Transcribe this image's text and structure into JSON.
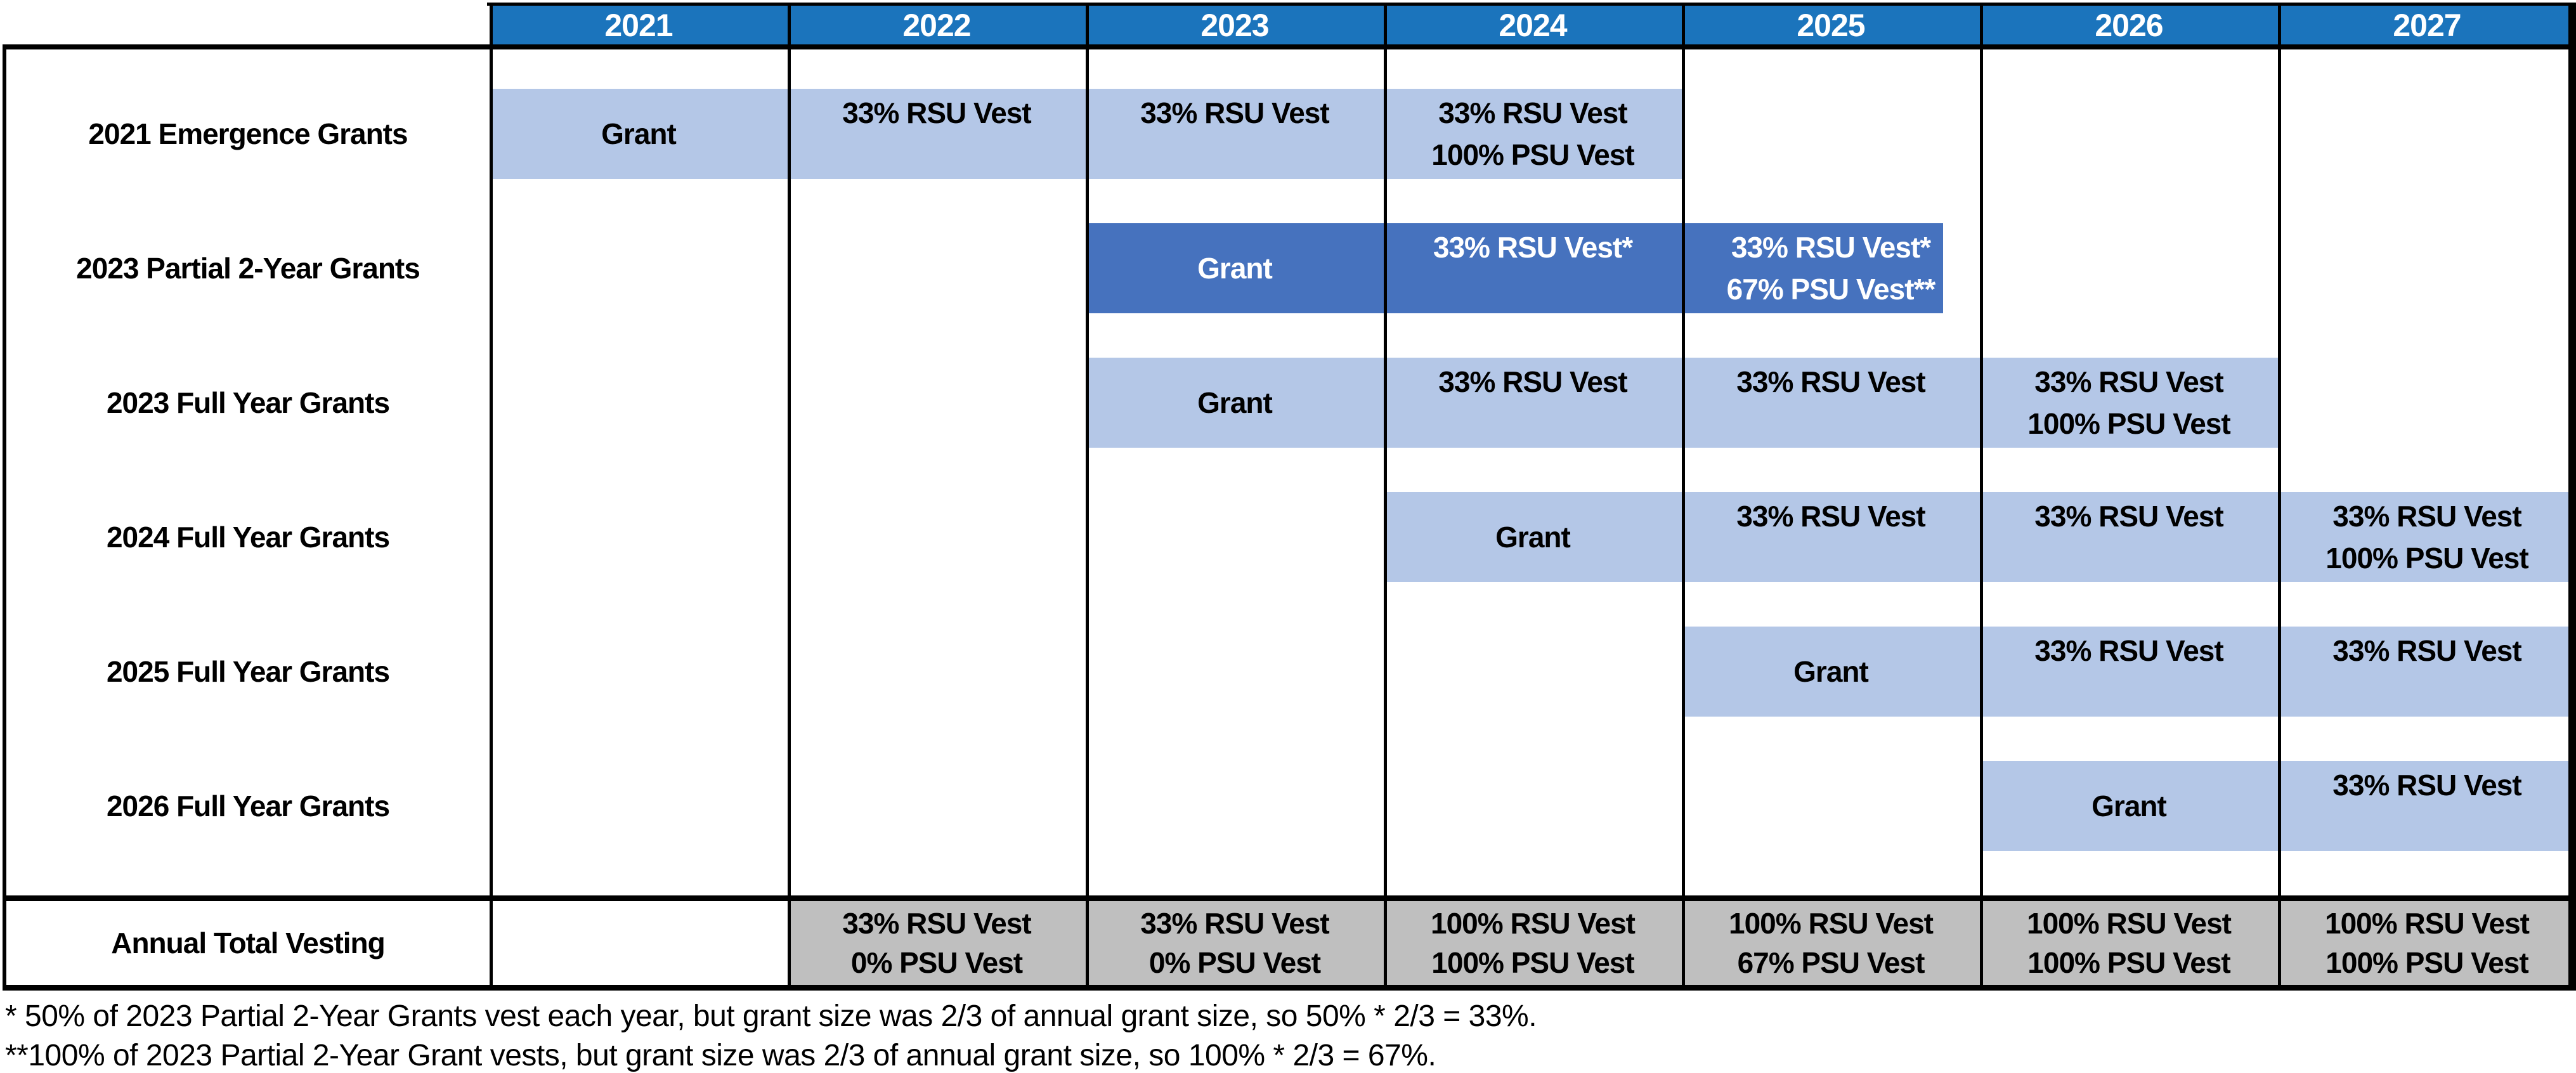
{
  "palette": {
    "header_blue": "#1B74BC",
    "light_blue": "#B4C7E7",
    "dark_blue": "#4672BE",
    "total_gray": "#BFBFBF",
    "border_black": "#000000",
    "text_black": "#000000",
    "text_white": "#FFFFFF"
  },
  "columns": [
    "2021",
    "2022",
    "2023",
    "2024",
    "2025",
    "2026",
    "2027"
  ],
  "rows": [
    {
      "label": "2021 Emergence Grants",
      "bar": {
        "start": 0,
        "end": 3,
        "style": "light",
        "end_partial": false
      },
      "cells": [
        {
          "col": 0,
          "lines": [
            "Grant"
          ],
          "center": true
        },
        {
          "col": 1,
          "lines": [
            "33% RSU Vest"
          ]
        },
        {
          "col": 2,
          "lines": [
            "33% RSU Vest"
          ]
        },
        {
          "col": 3,
          "lines": [
            "33% RSU Vest",
            "100% PSU Vest"
          ]
        }
      ]
    },
    {
      "label": "2023 Partial 2-Year Grants",
      "bar": {
        "start": 2,
        "end": 4,
        "style": "dark",
        "end_partial": true
      },
      "cells": [
        {
          "col": 2,
          "lines": [
            "Grant"
          ],
          "center": true
        },
        {
          "col": 3,
          "lines": [
            "33% RSU Vest*"
          ]
        },
        {
          "col": 4,
          "lines": [
            "33% RSU Vest*",
            "67% PSU Vest**"
          ]
        }
      ]
    },
    {
      "label": "2023 Full Year Grants",
      "bar": {
        "start": 2,
        "end": 5,
        "style": "light",
        "end_partial": false
      },
      "cells": [
        {
          "col": 2,
          "lines": [
            "Grant"
          ],
          "center": true
        },
        {
          "col": 3,
          "lines": [
            "33% RSU Vest"
          ]
        },
        {
          "col": 4,
          "lines": [
            "33% RSU Vest"
          ]
        },
        {
          "col": 5,
          "lines": [
            "33% RSU Vest",
            "100% PSU Vest"
          ]
        }
      ]
    },
    {
      "label": "2024 Full Year Grants",
      "bar": {
        "start": 3,
        "end": 6,
        "style": "light",
        "end_partial": false
      },
      "cells": [
        {
          "col": 3,
          "lines": [
            "Grant"
          ],
          "center": true
        },
        {
          "col": 4,
          "lines": [
            "33% RSU Vest"
          ]
        },
        {
          "col": 5,
          "lines": [
            "33% RSU Vest"
          ]
        },
        {
          "col": 6,
          "lines": [
            "33% RSU Vest",
            "100% PSU Vest"
          ]
        }
      ]
    },
    {
      "label": "2025 Full Year Grants",
      "bar": {
        "start": 4,
        "end": 6,
        "style": "light",
        "end_partial": false
      },
      "cells": [
        {
          "col": 4,
          "lines": [
            "Grant"
          ],
          "center": true
        },
        {
          "col": 5,
          "lines": [
            "33% RSU Vest"
          ]
        },
        {
          "col": 6,
          "lines": [
            "33% RSU Vest"
          ]
        }
      ]
    },
    {
      "label": "2026 Full Year Grants",
      "bar": {
        "start": 5,
        "end": 6,
        "style": "light",
        "end_partial": false
      },
      "cells": [
        {
          "col": 5,
          "lines": [
            "Grant"
          ],
          "center": true
        },
        {
          "col": 6,
          "lines": [
            "33% RSU Vest"
          ]
        }
      ]
    }
  ],
  "total_row": {
    "label": "Annual Total Vesting",
    "cells": [
      {
        "col": 1,
        "lines": [
          "33% RSU Vest",
          "0% PSU Vest"
        ]
      },
      {
        "col": 2,
        "lines": [
          "33% RSU Vest",
          "0% PSU Vest"
        ]
      },
      {
        "col": 3,
        "lines": [
          "100% RSU Vest",
          "100% PSU Vest"
        ]
      },
      {
        "col": 4,
        "lines": [
          "100% RSU Vest",
          "67% PSU Vest"
        ]
      },
      {
        "col": 5,
        "lines": [
          "100% RSU Vest",
          "100% PSU Vest"
        ]
      },
      {
        "col": 6,
        "lines": [
          "100% RSU Vest",
          "100% PSU Vest"
        ]
      }
    ]
  },
  "footnotes": [
    "* 50% of 2023 Partial 2-Year Grants vest each year, but grant size was 2/3 of annual grant size, so 50% * 2/3 = 33%.",
    "**100% of 2023 Partial 2-Year Grant vests, but grant size was 2/3 of annual grant size, so 100% * 2/3 = 67%."
  ]
}
